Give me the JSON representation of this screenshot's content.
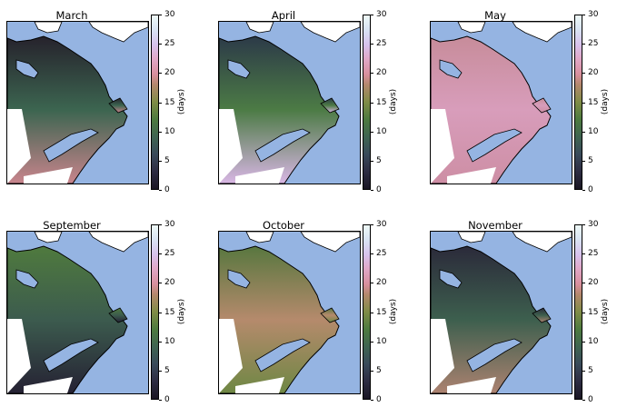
{
  "figure": {
    "colorbar_label": "(days)",
    "colorbar_ticks": [
      "0",
      "5",
      "10",
      "15",
      "20",
      "25",
      "30"
    ],
    "colorbar_range": [
      0,
      30
    ],
    "colors": {
      "ocean": "#95b4e2",
      "land_outside": "#ffffff",
      "coast_line": "#000000"
    }
  },
  "panels": [
    {
      "title": "March",
      "north": "#26222c",
      "mid": "#3c6550",
      "south": "#c8848c"
    },
    {
      "title": "April",
      "north": "#2c3a48",
      "mid": "#4c7b45",
      "south": "#d8b6e4"
    },
    {
      "title": "May",
      "north": "#c78c9a",
      "mid": "#d89dbb",
      "south": "#cd8ea4"
    },
    {
      "title": "September",
      "north": "#4f7a3e",
      "mid": "#3c5b4e",
      "south": "#252133"
    },
    {
      "title": "October",
      "north": "#58773f",
      "mid": "#b58a6c",
      "south": "#6e8744"
    },
    {
      "title": "November",
      "north": "#2b2a3a",
      "mid": "#3d5f4e",
      "south": "#ac8270"
    }
  ]
}
